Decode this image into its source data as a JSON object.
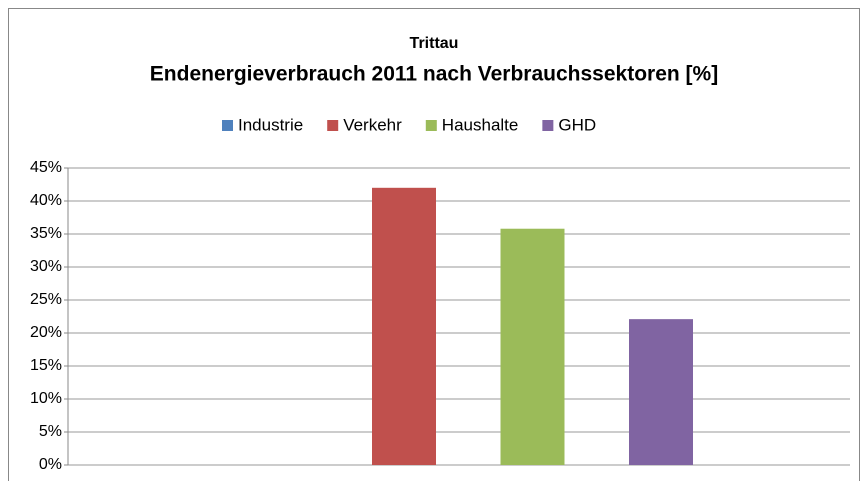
{
  "chart_data": {
    "type": "bar",
    "title": "Trittau",
    "subtitle": "Endenergieverbrauch 2011 nach Verbrauchssektoren [%]",
    "series": [
      {
        "name": "Industrie",
        "color": "#4f81bd",
        "values": [
          0
        ]
      },
      {
        "name": "Verkehr",
        "color": "#c0504d",
        "values": [
          42
        ]
      },
      {
        "name": "Haushalte",
        "color": "#9bbb59",
        "values": [
          35.8
        ]
      },
      {
        "name": "GHD",
        "color": "#8064a2",
        "values": [
          22.1
        ]
      }
    ],
    "ylim": [
      0,
      45
    ],
    "yticks": [
      {
        "value": 0,
        "label": "0%"
      },
      {
        "value": 5,
        "label": "5%"
      },
      {
        "value": 10,
        "label": "10%"
      },
      {
        "value": 15,
        "label": "15%"
      },
      {
        "value": 20,
        "label": "20%"
      },
      {
        "value": 25,
        "label": "25%"
      },
      {
        "value": 30,
        "label": "30%"
      },
      {
        "value": 35,
        "label": "35%"
      },
      {
        "value": 40,
        "label": "40%"
      },
      {
        "value": 45,
        "label": "45%"
      }
    ],
    "grid": true,
    "legend": "top"
  }
}
